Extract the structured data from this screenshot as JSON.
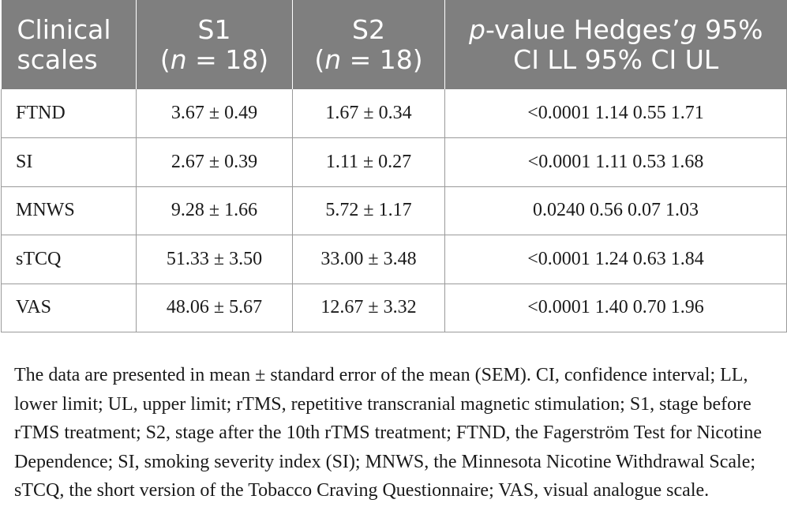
{
  "table": {
    "headers": [
      {
        "line1": "Clinical",
        "line2": "scales"
      },
      {
        "line1": "S1",
        "line2_pre": "(",
        "line2_italic": "n",
        "line2_post": " = 18)"
      },
      {
        "line1": "S2",
        "line2_pre": "(",
        "line2_italic": "n",
        "line2_post": " = 18)"
      },
      {
        "line1_italic": "p",
        "line1_rest": "-value Hedges’",
        "line1_g": "g",
        "line1_tail": " 95%",
        "line2": "CI LL 95% CI UL"
      }
    ],
    "rows": [
      {
        "scale": "FTND",
        "s1": "3.67 ± 0.49",
        "s2": "1.67 ± 0.34",
        "stats": "<0.0001 1.14 0.55 1.71"
      },
      {
        "scale": "SI",
        "s1": "2.67 ± 0.39",
        "s2": "1.11 ± 0.27",
        "stats": "<0.0001 1.11 0.53 1.68"
      },
      {
        "scale": "MNWS",
        "s1": "9.28 ± 1.66",
        "s2": "5.72 ± 1.17",
        "stats": "0.0240 0.56 0.07 1.03"
      },
      {
        "scale": "sTCQ",
        "s1": "51.33 ± 3.50",
        "s2": "33.00 ± 3.48",
        "stats": "<0.0001 1.24 0.63 1.84"
      },
      {
        "scale": "VAS",
        "s1": "48.06 ± 5.67",
        "s2": "12.67 ± 3.32",
        "stats": "<0.0001 1.40 0.70 1.96"
      }
    ]
  },
  "footnote": "The data are presented in mean ± standard error of the mean (SEM). CI, confidence interval; LL, lower limit; UL, upper limit; rTMS, repetitive transcranial magnetic stimulation; S1, stage before rTMS treatment; S2, stage after the 10th rTMS treatment; FTND, the Fagerström Test for Nicotine Dependence; SI, smoking severity index (SI); MNWS, the Minnesota Nicotine Withdrawal Scale; sTCQ, the short version of the Tobacco Craving Questionnaire; VAS, visual analogue scale."
}
